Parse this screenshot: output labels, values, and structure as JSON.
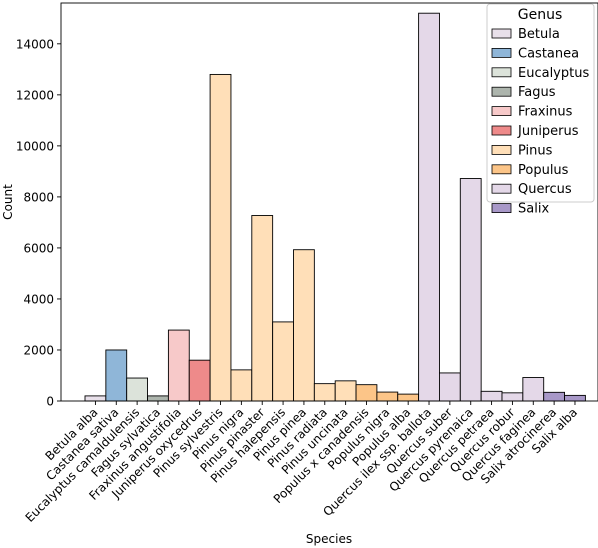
{
  "chart_data": {
    "type": "bar",
    "xlabel": "Species",
    "ylabel": "Count",
    "ylim": [
      0,
      15600
    ],
    "yticks": [
      0,
      2000,
      4000,
      6000,
      8000,
      10000,
      12000,
      14000
    ],
    "grid": false,
    "legend": {
      "title": "Genus",
      "placement": "top-right",
      "entries": [
        {
          "name": "Betula",
          "color": "#e8e0ea"
        },
        {
          "name": "Castanea",
          "color": "#8fb6d8"
        },
        {
          "name": "Eucalyptus",
          "color": "#dce3da"
        },
        {
          "name": "Fagus",
          "color": "#adb5ad"
        },
        {
          "name": "Fraxinus",
          "color": "#f7c9c9"
        },
        {
          "name": "Juniperus",
          "color": "#ee8a8a"
        },
        {
          "name": "Pinus",
          "color": "#ffdfb8"
        },
        {
          "name": "Populus",
          "color": "#fcc588"
        },
        {
          "name": "Quercus",
          "color": "#e4d8e8"
        },
        {
          "name": "Salix",
          "color": "#a898c8"
        }
      ]
    },
    "categories": [
      "Betula alba",
      "Castanea sativa",
      "Eucalyptus camaldulensis",
      "Fagus sylvatica",
      "Fraxinus angustifolia",
      "Juniperus oxycedrus",
      "Pinus sylvestris",
      "Pinus nigra",
      "Pinus pinaster",
      "Pinus halepensis",
      "Pinus pinea",
      "Pinus radiata",
      "Pinus uncinata",
      "Populus x canadensis",
      "Populus nigra",
      "Populus alba",
      "Quercus ilex ssp. ballota",
      "Quercus suber",
      "Quercus pyrenaica",
      "Quercus petraea",
      "Quercus robur",
      "Quercus faginea",
      "Salix atrocinerea",
      "Salix alba"
    ],
    "genus": [
      "Betula",
      "Castanea",
      "Eucalyptus",
      "Fagus",
      "Fraxinus",
      "Juniperus",
      "Pinus",
      "Pinus",
      "Pinus",
      "Pinus",
      "Pinus",
      "Pinus",
      "Pinus",
      "Populus",
      "Populus",
      "Populus",
      "Quercus",
      "Quercus",
      "Quercus",
      "Quercus",
      "Quercus",
      "Quercus",
      "Salix",
      "Salix"
    ],
    "values": [
      200,
      2000,
      900,
      200,
      2780,
      1600,
      12800,
      1220,
      7270,
      3100,
      5930,
      680,
      790,
      640,
      350,
      270,
      15200,
      1100,
      8720,
      380,
      320,
      920,
      340,
      220
    ]
  }
}
